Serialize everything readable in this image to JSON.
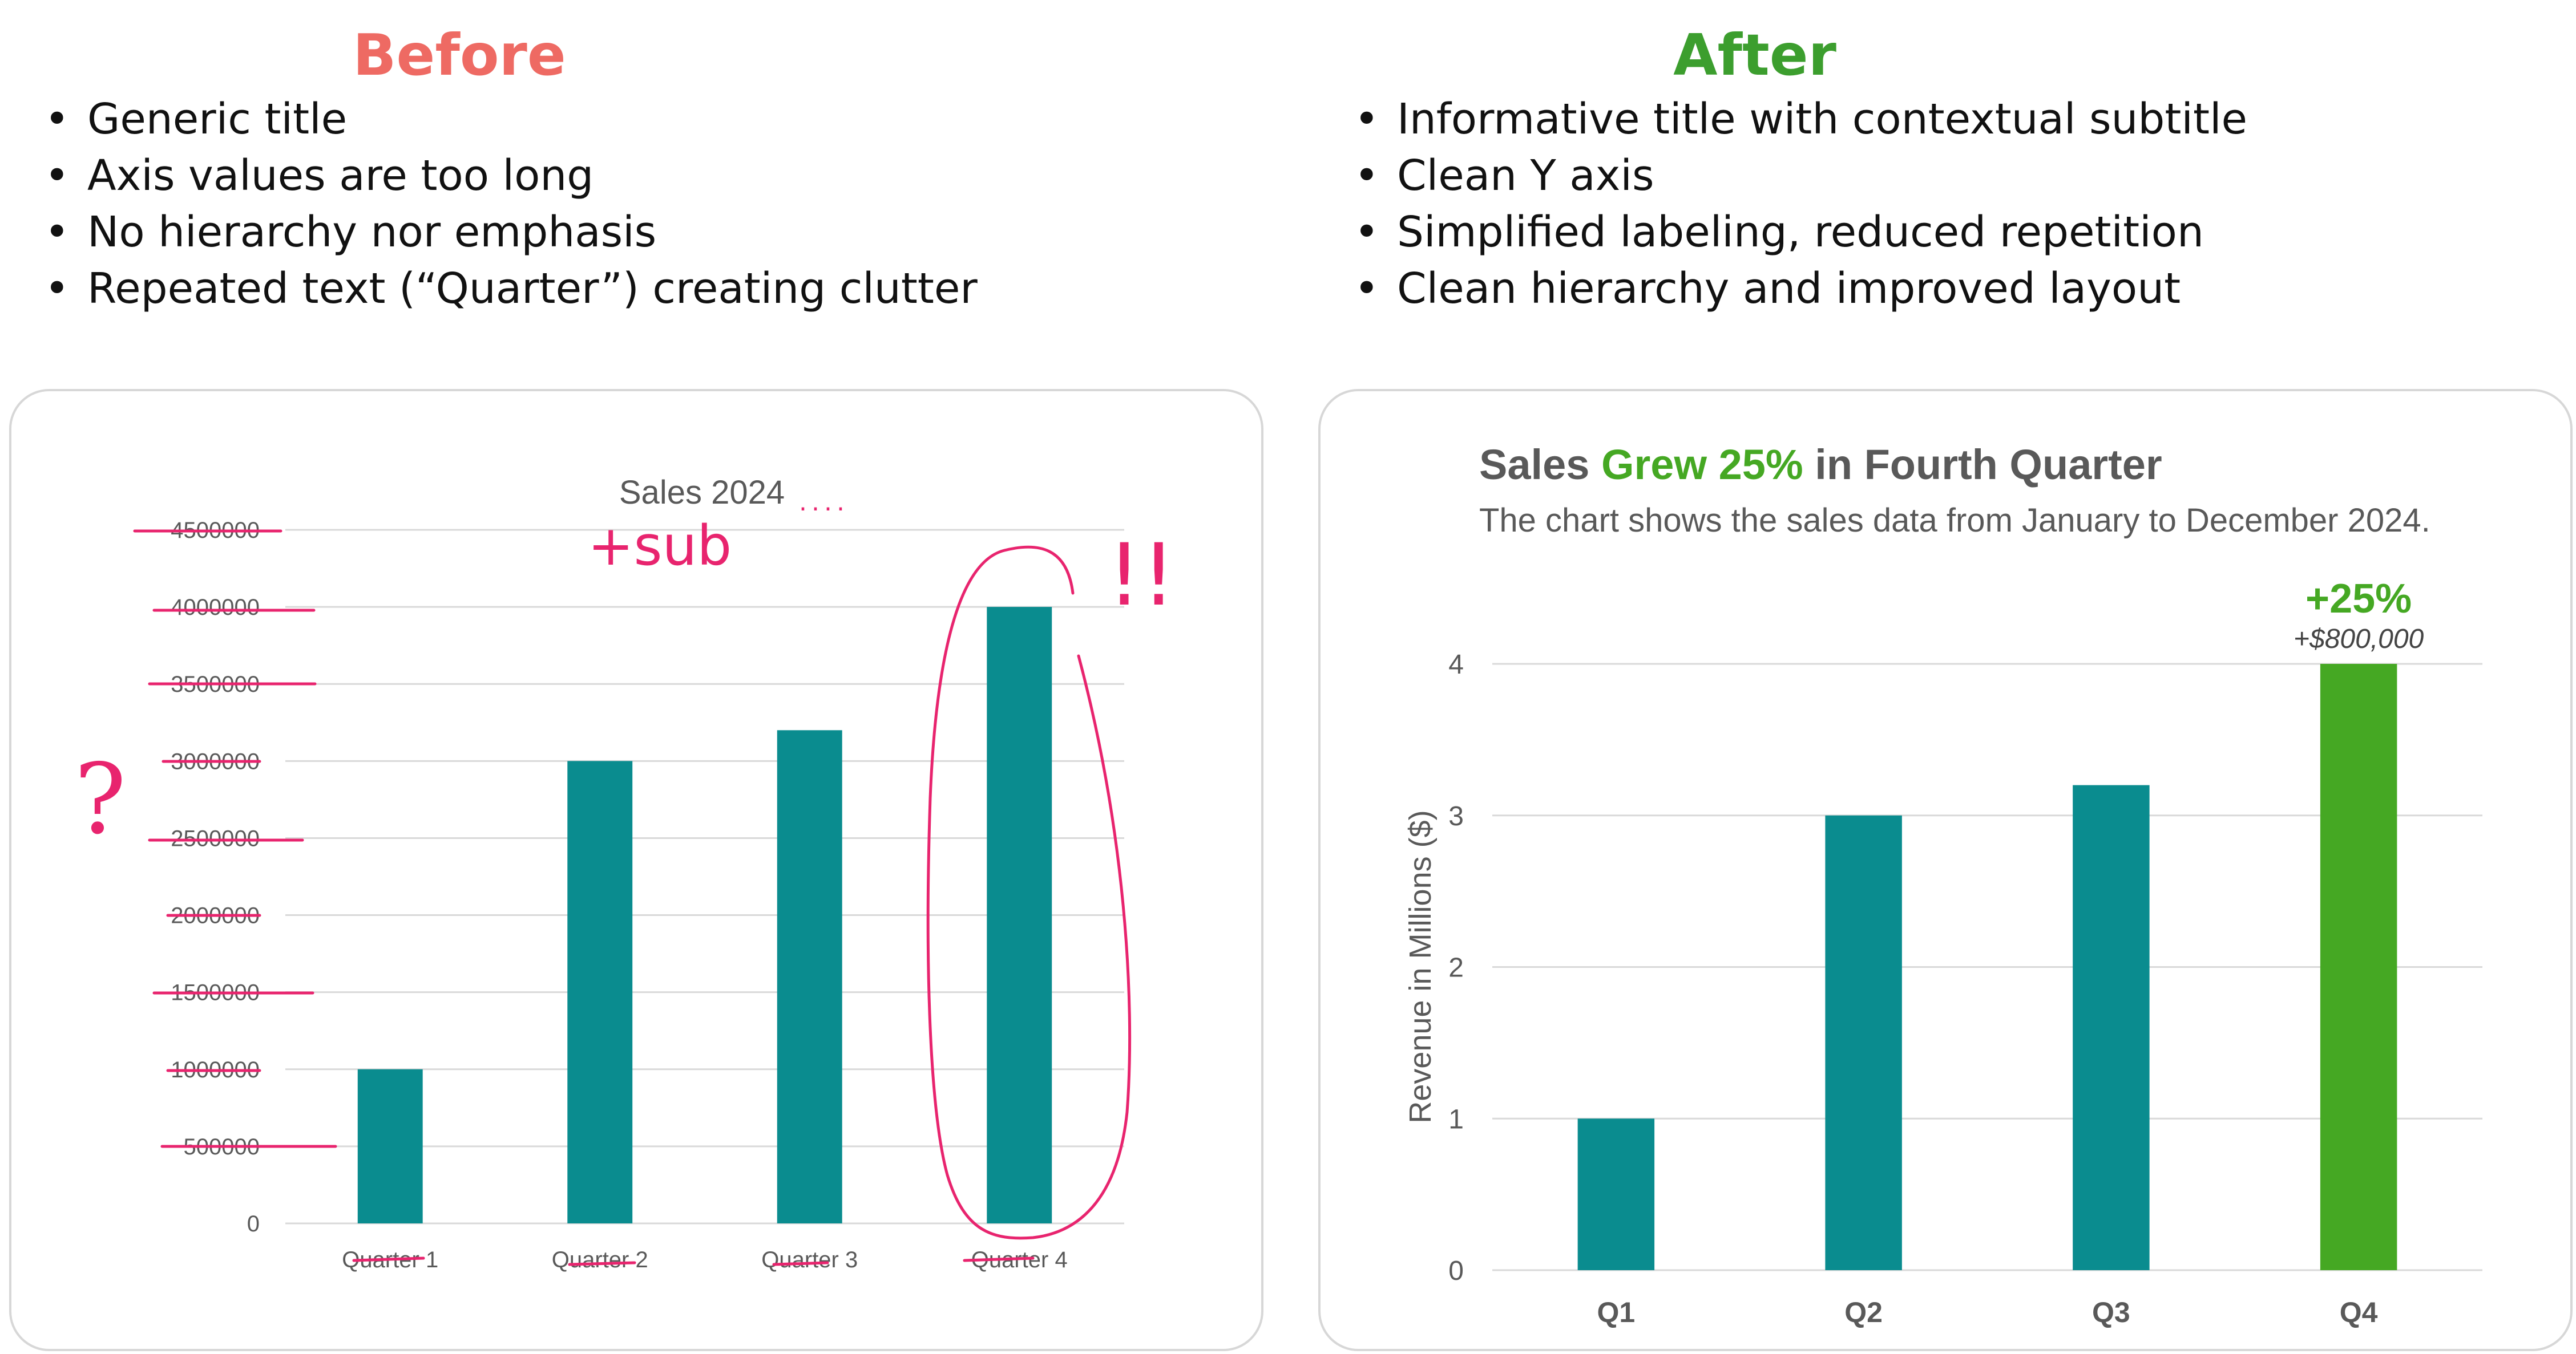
{
  "before": {
    "heading": "Before",
    "notes": [
      "Generic title",
      "Axis values are too long",
      "No hierarchy nor emphasis",
      "Repeated text (“Quarter”) creating clutter"
    ]
  },
  "after": {
    "heading": "After",
    "notes": [
      "Informative title with contextual subtitle",
      "Clean Y axis",
      "Simplified labeling, reduced repetition",
      "Clean hierarchy and improved layout"
    ]
  },
  "annotations": {
    "sub_note": "+sub",
    "dots": "....",
    "question": "?",
    "exclaim": "!!"
  },
  "colors": {
    "before_heading": "#ee6a63",
    "after_heading": "#3c9e2e",
    "bar": "#0a8c8f",
    "highlight": "#45a823",
    "annotation": "#e8246e"
  },
  "chart_data": [
    {
      "type": "bar",
      "title": "Sales 2024",
      "categories": [
        "Quarter 1",
        "Quarter 2",
        "Quarter 3",
        "Quarter 4"
      ],
      "values": [
        1000000,
        3000000,
        3200000,
        4000000
      ],
      "ylim": [
        0,
        4500000
      ],
      "yticks": [
        "0",
        "500000",
        "1000000",
        "1500000",
        "2000000",
        "2500000",
        "3000000",
        "3500000",
        "4000000",
        "4500000"
      ],
      "grid": true,
      "legend": "none"
    },
    {
      "type": "bar",
      "title_parts": [
        "Sales ",
        "Grew 25%",
        " in Fourth Quarter"
      ],
      "subtitle": "The chart shows the sales data from January to December 2024.",
      "ylabel": "Revenue  in Millions ($)",
      "categories": [
        "Q1",
        "Q2",
        "Q3",
        "Q4"
      ],
      "values": [
        1,
        3,
        3.2,
        4
      ],
      "ylim": [
        0,
        4
      ],
      "yticks": [
        "0",
        "1",
        "2",
        "3",
        "4"
      ],
      "highlight_index": 3,
      "highlight_label": "+25%",
      "highlight_sublabel": "+$800,000",
      "grid": true,
      "legend": "none"
    }
  ]
}
